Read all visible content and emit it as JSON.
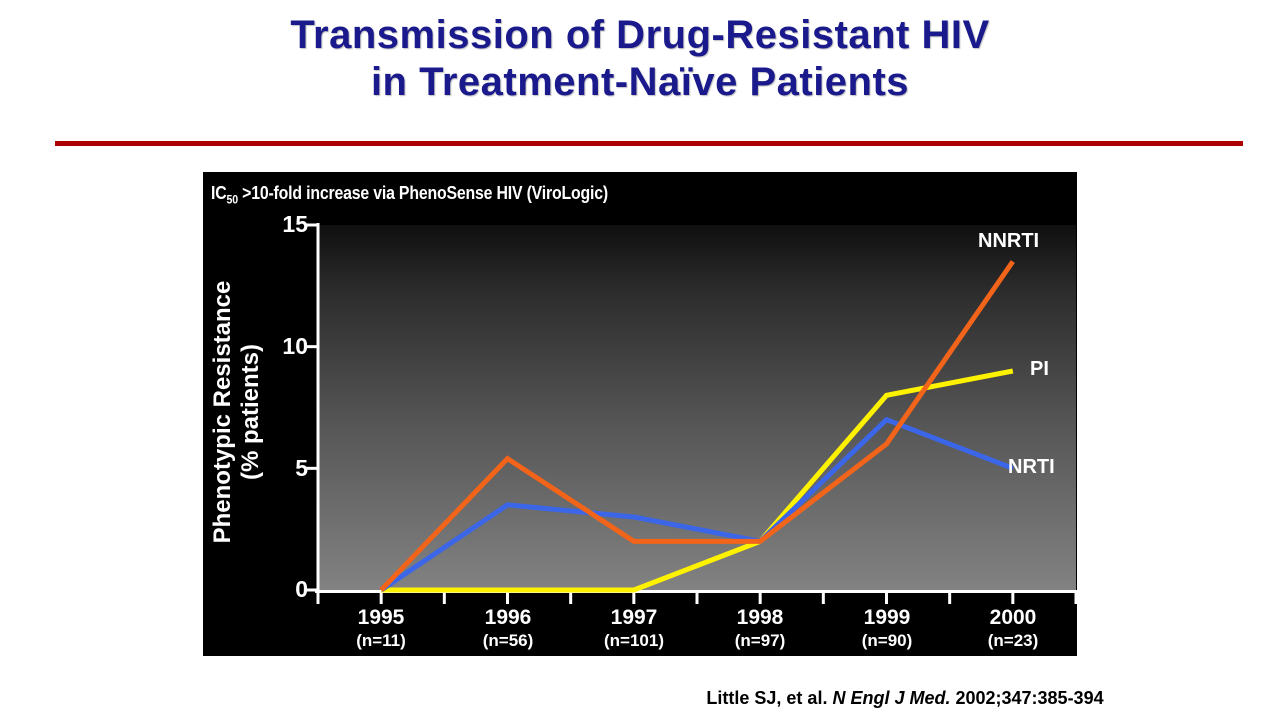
{
  "title": {
    "line1": "Transmission of Drug-Resistant HIV",
    "line2": "in Treatment-Naïve Patients"
  },
  "colors": {
    "title_navy": "#1A1A8C",
    "divider_red": "#AE0000",
    "panel_black": "#000000",
    "axis_white": "#FFFFFF",
    "nnrti_orange": "#F26419",
    "pi_yellow": "#FFF200",
    "nrti_blue": "#3C66E8"
  },
  "chart": {
    "subtitle_prefix": "IC",
    "subtitle_sub": "50",
    "subtitle_rest": " >10-fold increase via PhenoSense HIV (ViroLogic)",
    "y_axis_title_line1": "Phenotypic Resistance",
    "y_axis_title_line2": "(% patients)"
  },
  "chart_data": {
    "type": "line",
    "title": "IC50 >10-fold increase via PhenoSense HIV (ViroLogic)",
    "ylabel": "Phenotypic Resistance (% patients)",
    "xlabel": "",
    "ylim": [
      0,
      15
    ],
    "yticks": [
      "15",
      "10",
      "5",
      "0"
    ],
    "grid": false,
    "legend_position": "inline-right-of-lines",
    "categories": [
      {
        "year": "1995",
        "n": "(n=11)"
      },
      {
        "year": "1996",
        "n": "(n=56)"
      },
      {
        "year": "1997",
        "n": "(n=101)"
      },
      {
        "year": "1998",
        "n": "(n=97)"
      },
      {
        "year": "1999",
        "n": "(n=90)"
      },
      {
        "year": "2000",
        "n": "(n=23)"
      }
    ],
    "series": [
      {
        "name": "NNRTI",
        "color": "#F26419",
        "values": [
          0,
          5.4,
          2,
          2,
          6,
          13.5
        ]
      },
      {
        "name": "PI",
        "color": "#FFF200",
        "values": [
          0,
          0,
          0,
          2,
          8,
          9
        ]
      },
      {
        "name": "NRTI",
        "color": "#3C66E8",
        "values": [
          0,
          3.5,
          3,
          2,
          7,
          5
        ]
      }
    ]
  },
  "citation": {
    "part1": "Little SJ, et al. ",
    "part2": "N Engl J Med.",
    "part3": " 2002;347:385-394"
  }
}
